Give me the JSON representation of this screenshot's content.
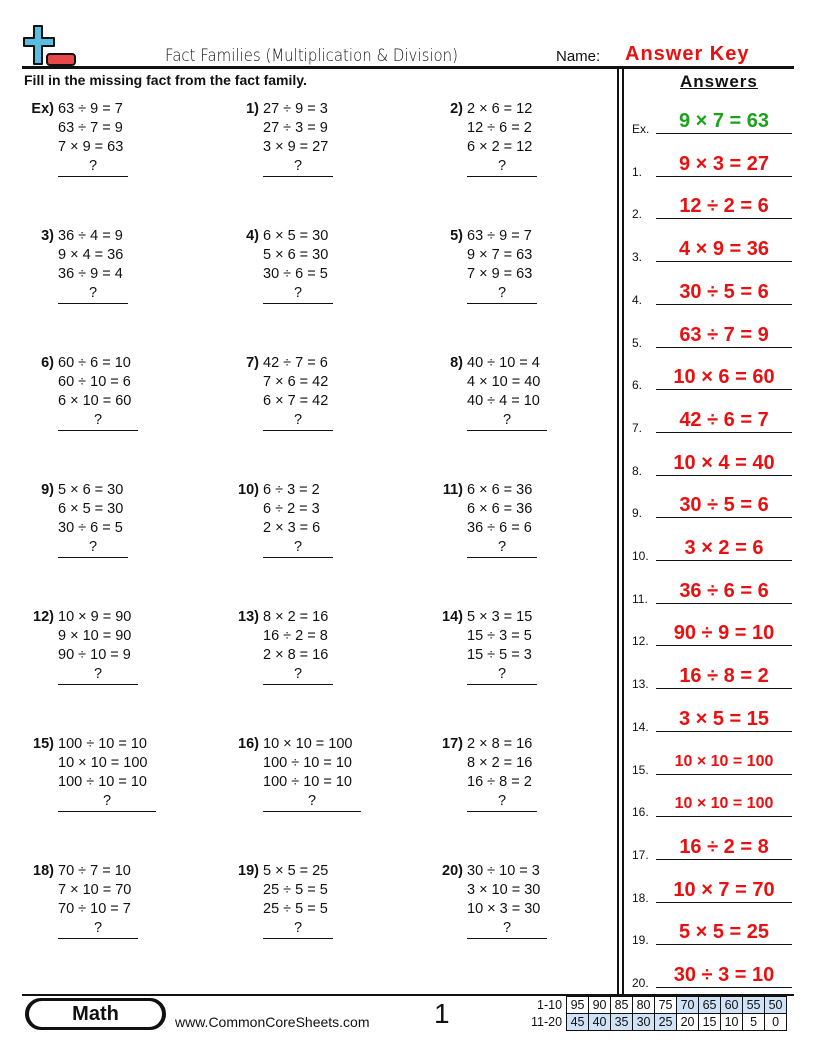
{
  "header": {
    "title": "Fact Families (Multiplication & Division)",
    "name_label": "Name:",
    "answer_key": "Answer Key",
    "logo_colors": {
      "plus": "#5bbde0",
      "minus": "#e84848"
    }
  },
  "instructions": "Fill in the missing fact from the fact family.",
  "problems": [
    {
      "num": "Ex)",
      "lines": [
        "63 ÷ 9 = 7",
        "63 ÷ 7 = 9",
        "7 × 9 = 63"
      ],
      "q": "?"
    },
    {
      "num": "1)",
      "lines": [
        "27 ÷ 9 = 3",
        "27 ÷ 3 = 9",
        "3 × 9 = 27"
      ],
      "q": "?"
    },
    {
      "num": "2)",
      "lines": [
        "2 × 6 = 12",
        "12 ÷ 6 = 2",
        "6 × 2 = 12"
      ],
      "q": "?"
    },
    {
      "num": "3)",
      "lines": [
        "36 ÷ 4 = 9",
        "9 × 4 = 36",
        "36 ÷ 9 = 4"
      ],
      "q": "?"
    },
    {
      "num": "4)",
      "lines": [
        "6 × 5 = 30",
        "5 × 6 = 30",
        "30 ÷ 6 = 5"
      ],
      "q": "?"
    },
    {
      "num": "5)",
      "lines": [
        "63 ÷ 9 = 7",
        "9 × 7 = 63",
        "7 × 9 = 63"
      ],
      "q": "?"
    },
    {
      "num": "6)",
      "lines": [
        "60 ÷ 6 = 10",
        "60 ÷ 10 = 6",
        "6 × 10 = 60"
      ],
      "q": "?"
    },
    {
      "num": "7)",
      "lines": [
        "42 ÷ 7 = 6",
        "7 × 6 = 42",
        "6 × 7 = 42"
      ],
      "q": "?"
    },
    {
      "num": "8)",
      "lines": [
        "40 ÷ 10 = 4",
        "4 × 10 = 40",
        "40 ÷ 4 = 10"
      ],
      "q": "?"
    },
    {
      "num": "9)",
      "lines": [
        "5 × 6 = 30",
        "6 × 5 = 30",
        "30 ÷ 6 = 5"
      ],
      "q": "?"
    },
    {
      "num": "10)",
      "lines": [
        "6 ÷ 3 = 2",
        "6 ÷ 2 = 3",
        "2 × 3 = 6"
      ],
      "q": "?"
    },
    {
      "num": "11)",
      "lines": [
        "6 × 6 = 36",
        "6 × 6 = 36",
        "36 ÷ 6 = 6"
      ],
      "q": "?"
    },
    {
      "num": "12)",
      "lines": [
        "10 × 9 = 90",
        "9 × 10 = 90",
        "90 ÷ 10 = 9"
      ],
      "q": "?"
    },
    {
      "num": "13)",
      "lines": [
        "8 × 2 = 16",
        "16 ÷ 2 = 8",
        "2 × 8 = 16"
      ],
      "q": "?"
    },
    {
      "num": "14)",
      "lines": [
        "5 × 3 = 15",
        "15 ÷ 3 = 5",
        "15 ÷ 5 = 3"
      ],
      "q": "?"
    },
    {
      "num": "15)",
      "lines": [
        "100 ÷ 10 = 10",
        "10 × 10 = 100",
        "100 ÷ 10 = 10"
      ],
      "q": "?"
    },
    {
      "num": "16)",
      "lines": [
        "10 × 10 = 100",
        "100 ÷ 10 = 10",
        "100 ÷ 10 = 10"
      ],
      "q": "?"
    },
    {
      "num": "17)",
      "lines": [
        "2 × 8 = 16",
        "8 × 2 = 16",
        "16 ÷ 8 = 2"
      ],
      "q": "?"
    },
    {
      "num": "18)",
      "lines": [
        "70 ÷ 7 = 10",
        "7 × 10 = 70",
        "70 ÷ 10 = 7"
      ],
      "q": "?"
    },
    {
      "num": "19)",
      "lines": [
        "5 × 5 = 25",
        "25 ÷ 5 = 5",
        "25 ÷ 5 = 5"
      ],
      "q": "?"
    },
    {
      "num": "20)",
      "lines": [
        "30 ÷ 10 = 3",
        "3 × 10 = 30",
        "10 × 3 = 30"
      ],
      "q": "?"
    }
  ],
  "answers_heading": "Answers",
  "answers": [
    {
      "label": "Ex.",
      "value": "9 × 7 = 63"
    },
    {
      "label": "1.",
      "value": "9 × 3 = 27"
    },
    {
      "label": "2.",
      "value": "12 ÷ 2 = 6"
    },
    {
      "label": "3.",
      "value": "4 × 9 = 36"
    },
    {
      "label": "4.",
      "value": "30 ÷ 5 = 6"
    },
    {
      "label": "5.",
      "value": "63 ÷ 7 = 9"
    },
    {
      "label": "6.",
      "value": "10 × 6 = 60"
    },
    {
      "label": "7.",
      "value": "42 ÷ 6 = 7"
    },
    {
      "label": "8.",
      "value": "10 × 4 = 40"
    },
    {
      "label": "9.",
      "value": "30 ÷ 5 = 6"
    },
    {
      "label": "10.",
      "value": "3 × 2 = 6"
    },
    {
      "label": "11.",
      "value": "36 ÷ 6 = 6"
    },
    {
      "label": "12.",
      "value": "90 ÷ 9 = 10"
    },
    {
      "label": "13.",
      "value": "16 ÷ 8 = 2"
    },
    {
      "label": "14.",
      "value": "3 × 5 = 15"
    },
    {
      "label": "15.",
      "value": "10 × 10 = 100"
    },
    {
      "label": "16.",
      "value": "10 × 10 = 100"
    },
    {
      "label": "17.",
      "value": "16 ÷ 2 = 8"
    },
    {
      "label": "18.",
      "value": "10 × 7 = 70"
    },
    {
      "label": "19.",
      "value": "5 × 5 = 25"
    },
    {
      "label": "20.",
      "value": "30 ÷ 3 = 10"
    }
  ],
  "colors": {
    "answer": "#e81010",
    "example_answer": "#1aa31a",
    "score_highlight": "#cfe2f7"
  },
  "footer": {
    "subject": "Math",
    "url": "www.CommonCoreSheets.com",
    "page": "1",
    "score_rows": [
      {
        "label": "1-10",
        "values": [
          "95",
          "90",
          "85",
          "80",
          "75",
          "70",
          "65",
          "60",
          "55",
          "50"
        ],
        "highlight_from": 5
      },
      {
        "label": "11-20",
        "values": [
          "45",
          "40",
          "35",
          "30",
          "25",
          "20",
          "15",
          "10",
          "5",
          "0"
        ],
        "highlight_to": 4
      }
    ]
  }
}
